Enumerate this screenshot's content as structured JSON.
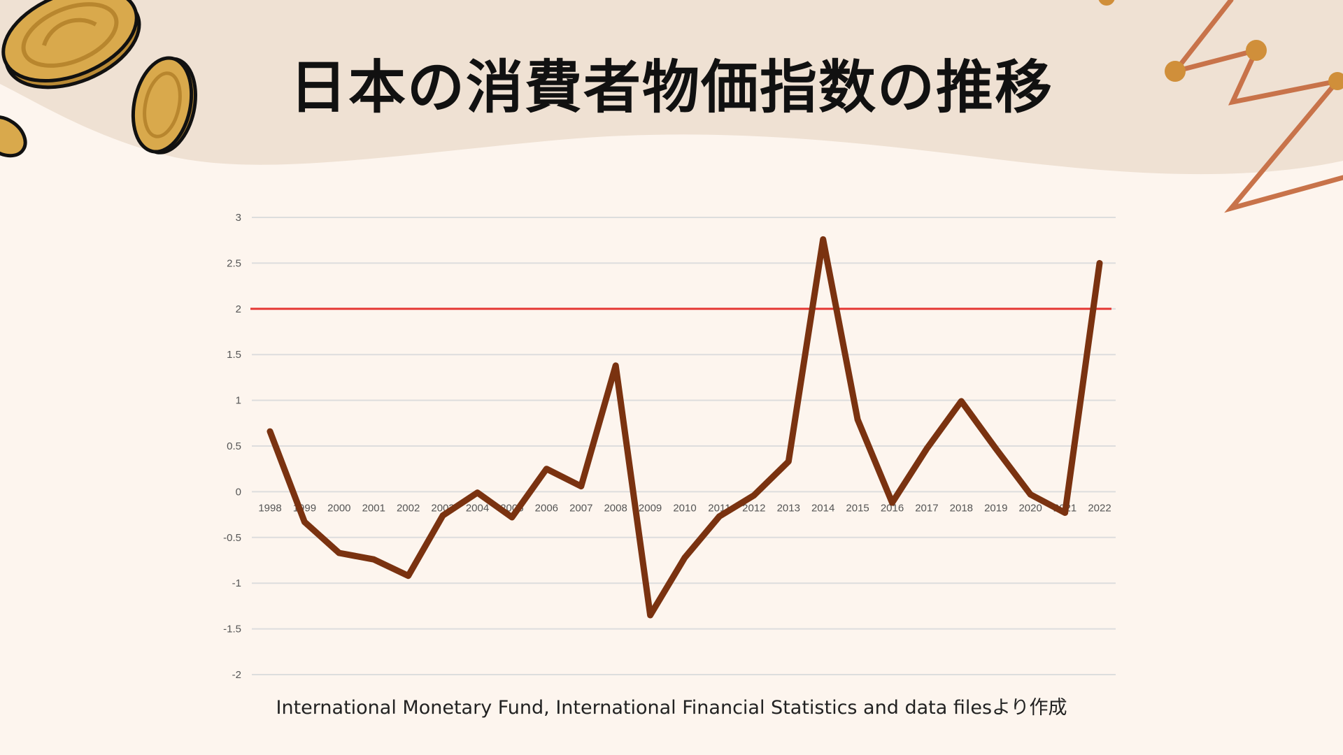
{
  "title": "日本の消費者物価指数の推移",
  "source": "International Monetary Fund, International Financial Statistics and data filesより作成",
  "colors": {
    "background": "#fdf5ee",
    "title_band": "#efe1d3",
    "series_line": "#7a3210",
    "target_line": "#e53935",
    "grid": "#dddddd",
    "coin": "#d4a64a",
    "deco_line": "#c8734a"
  },
  "chart_data": {
    "type": "line",
    "title": "日本の消費者物価指数の推移",
    "xlabel": "",
    "ylabel": "",
    "ylim": [
      -2,
      3
    ],
    "y_ticks": [
      "3",
      "2.5",
      "2",
      "1.5",
      "1",
      "0.5",
      "0",
      "-0.5",
      "-1",
      "-1.5",
      "-2"
    ],
    "y_tick_values": [
      3,
      2.5,
      2,
      1.5,
      1,
      0.5,
      0,
      -0.5,
      -1,
      -1.5,
      -2
    ],
    "grid": true,
    "legend": "none",
    "x": [
      "1998",
      "1999",
      "2000",
      "2001",
      "2002",
      "2003",
      "2004",
      "2005",
      "2006",
      "2007",
      "2008",
      "2009",
      "2010",
      "2011",
      "2012",
      "2013",
      "2014",
      "2015",
      "2016",
      "2017",
      "2018",
      "2019",
      "2020",
      "2021",
      "2022"
    ],
    "series": [
      {
        "values": [
          0.66,
          -0.33,
          -0.67,
          -0.74,
          -0.92,
          -0.26,
          -0.01,
          -0.28,
          0.25,
          0.06,
          1.38,
          -1.35,
          -0.72,
          -0.27,
          -0.04,
          0.33,
          2.76,
          0.79,
          -0.12,
          0.47,
          0.99,
          0.47,
          -0.03,
          -0.23,
          2.5
        ]
      }
    ],
    "reference_line": {
      "value": 2
    }
  }
}
